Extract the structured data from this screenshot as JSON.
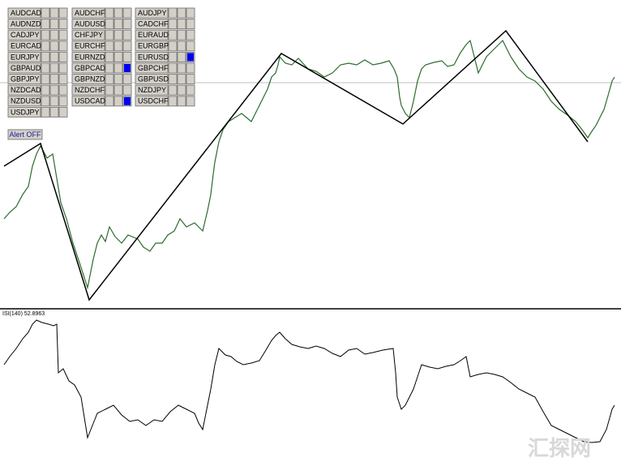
{
  "symbol_panel": {
    "columns": [
      {
        "rows": [
          {
            "label": "AUDCAD",
            "active": false
          },
          {
            "label": "AUDNZD",
            "active": false
          },
          {
            "label": "CADJPY",
            "active": false
          },
          {
            "label": "EURCAD",
            "active": false
          },
          {
            "label": "EURJPY",
            "active": false
          },
          {
            "label": "GBPAUD",
            "active": false
          },
          {
            "label": "GBPJPY",
            "active": false
          },
          {
            "label": "NZDCAD",
            "active": false
          },
          {
            "label": "NZDUSD",
            "active": false
          },
          {
            "label": "USDJPY",
            "active": false
          }
        ]
      },
      {
        "rows": [
          {
            "label": "AUDCHF",
            "active": false
          },
          {
            "label": "AUDUSD",
            "active": false
          },
          {
            "label": "CHFJPY",
            "active": false
          },
          {
            "label": "EURCHF",
            "active": false
          },
          {
            "label": "EURNZD",
            "active": false
          },
          {
            "label": "GBPCAD",
            "active": true
          },
          {
            "label": "GBPNZD",
            "active": false
          },
          {
            "label": "NZDCHF",
            "active": false
          },
          {
            "label": "USDCAD",
            "active": true
          }
        ]
      },
      {
        "rows": [
          {
            "label": "AUDJPY",
            "active": false
          },
          {
            "label": "CADCHF",
            "active": false
          },
          {
            "label": "EURAUD",
            "active": false
          },
          {
            "label": "EURGBP",
            "active": false
          },
          {
            "label": "EURUSD",
            "active": true
          },
          {
            "label": "GBPCHF",
            "active": false
          },
          {
            "label": "GBPUSD",
            "active": false
          },
          {
            "label": "NZDJPY",
            "active": false
          },
          {
            "label": "USDCHF",
            "active": false
          }
        ]
      }
    ]
  },
  "alert_button": "Alert OFF",
  "indicator_label": "ISI(140) 52.8963",
  "watermark": "汇探网"
}
